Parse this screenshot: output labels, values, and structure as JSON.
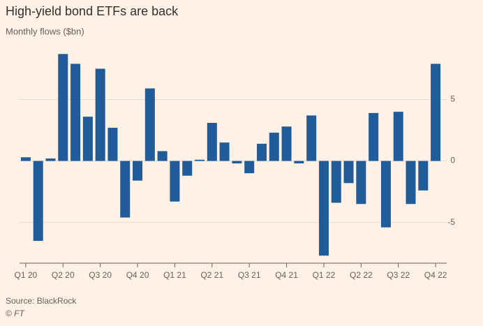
{
  "chart_data": {
    "type": "bar",
    "title": "High-yield bond ETFs are back",
    "subtitle": "Monthly flows ($bn)",
    "categories": [
      "Q1 20",
      null,
      null,
      "Q2 20",
      null,
      null,
      "Q3 20",
      null,
      null,
      "Q4 20",
      null,
      null,
      "Q1 21",
      null,
      null,
      "Q2 21",
      null,
      null,
      "Q3 21",
      null,
      null,
      "Q4 21",
      null,
      null,
      "Q1 22",
      null,
      null,
      "Q2 22",
      null,
      null,
      "Q3 22",
      null,
      null,
      "Q4 22"
    ],
    "values": [
      0.3,
      -6.5,
      0.2,
      8.7,
      7.9,
      3.6,
      7.5,
      2.7,
      -4.6,
      -1.6,
      5.9,
      0.8,
      -3.3,
      -1.2,
      0.1,
      3.1,
      1.5,
      -0.2,
      -1.0,
      1.4,
      2.3,
      2.8,
      -0.2,
      3.7,
      -7.7,
      -3.4,
      -1.8,
      -3.5,
      3.9,
      -5.4,
      4.0,
      -3.5,
      -2.4,
      7.9
    ],
    "color": "#1f5c99",
    "ylim": [
      -8.2,
      9.4
    ],
    "yticks": [
      -5,
      0,
      5
    ],
    "grid": true,
    "source": "Source: BlackRock",
    "credit": "© FT"
  }
}
